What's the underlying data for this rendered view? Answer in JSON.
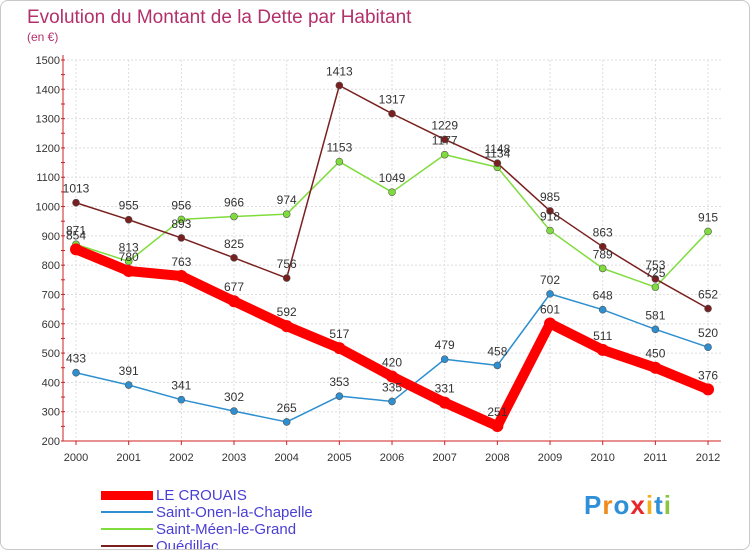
{
  "title": "Evolution du Montant de la Dette par Habitant",
  "subtitle": "(en €)",
  "logo": {
    "text": "Proxiti",
    "colors": [
      "#2f8fd8",
      "#f08a1c",
      "#2f8fd8",
      "#e8262d",
      "#f0b21c",
      "#2f8fd8",
      "#8bc53f"
    ]
  },
  "chart_data": {
    "type": "line",
    "title": "Evolution du Montant de la Dette par Habitant",
    "ylabel": "(en €)",
    "x": [
      "2000",
      "2001",
      "2002",
      "2003",
      "2004",
      "2005",
      "2006",
      "2007",
      "2008",
      "2009",
      "2010",
      "2011",
      "2012"
    ],
    "ylim": [
      200,
      1500
    ],
    "yticks": [
      200,
      300,
      400,
      500,
      600,
      700,
      800,
      900,
      1000,
      1100,
      1200,
      1300,
      1400,
      1500
    ],
    "grid": true,
    "legend_position": "bottom-left",
    "series": [
      {
        "name": "LE CROUAIS",
        "color": "#ff0000",
        "bold": true,
        "values": [
          854,
          780,
          763,
          677,
          592,
          517,
          420,
          331,
          251,
          601,
          511,
          450,
          376
        ],
        "labels": [
          "854",
          "780",
          "763",
          "677",
          "592",
          "517",
          "420",
          "331",
          "251",
          "601",
          "511",
          "450",
          "376"
        ]
      },
      {
        "name": "Saint-Onen-la-Chapelle",
        "color": "#2d8fd0",
        "values": [
          433,
          391,
          341,
          302,
          265,
          353,
          335,
          479,
          458,
          702,
          648,
          581,
          520
        ],
        "labels": [
          "433",
          "391",
          "341",
          "302",
          "265",
          "353",
          "335",
          "479",
          "458",
          "702",
          "648",
          "581",
          "520"
        ]
      },
      {
        "name": "Saint-Méen-le-Grand",
        "color": "#7fdc3c",
        "values": [
          871,
          813,
          956,
          966,
          974,
          1153,
          1049,
          1177,
          1134,
          918,
          789,
          725,
          915
        ],
        "labels": [
          "871",
          "813",
          "956",
          "966",
          "974",
          "1153",
          "1049",
          "1177",
          "1134",
          "918",
          "789",
          "725",
          "915"
        ]
      },
      {
        "name": "Quédillac",
        "color": "#7a1f1f",
        "values": [
          1013,
          955,
          893,
          825,
          756,
          1413,
          1317,
          1229,
          1148,
          985,
          863,
          753,
          652
        ],
        "labels": [
          "1013",
          "955",
          "893",
          "825",
          "756",
          "1413",
          "1317",
          "1229",
          "1148",
          "985",
          "863",
          "753",
          "652"
        ]
      }
    ]
  }
}
